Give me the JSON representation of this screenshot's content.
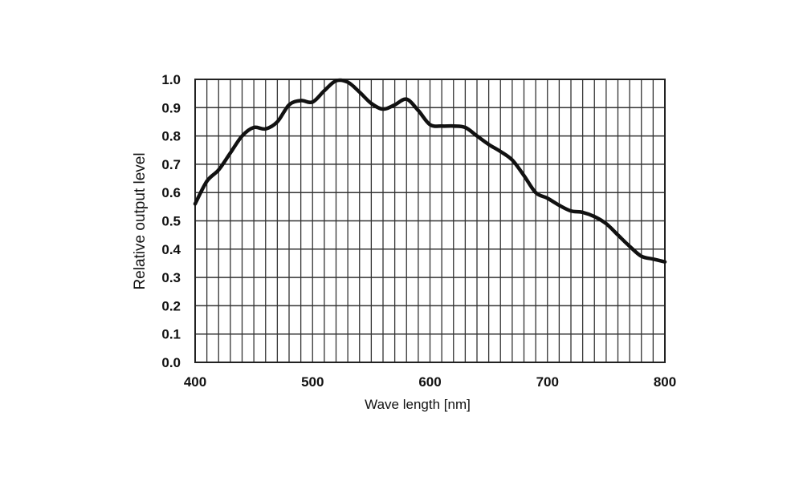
{
  "chart_data": {
    "type": "line",
    "title": "",
    "xlabel": "Wave length [nm]",
    "ylabel": "Relative output level",
    "xlim": [
      400,
      800
    ],
    "ylim": [
      0.0,
      1.0
    ],
    "x_ticks": [
      "400",
      "500",
      "600",
      "700",
      "800"
    ],
    "y_ticks": [
      "0.0",
      "0.1",
      "0.2",
      "0.3",
      "0.4",
      "0.5",
      "0.6",
      "0.7",
      "0.8",
      "0.9",
      "1.0"
    ],
    "grid": {
      "on": true,
      "x_minor_step": 10,
      "y_step": 0.1
    },
    "legend": null,
    "series": [
      {
        "name": "Relative output level",
        "color": "#111111",
        "x": [
          400,
          410,
          420,
          430,
          440,
          450,
          460,
          470,
          480,
          490,
          500,
          510,
          520,
          530,
          540,
          550,
          560,
          570,
          580,
          590,
          600,
          610,
          620,
          630,
          640,
          650,
          660,
          670,
          680,
          690,
          700,
          710,
          720,
          730,
          740,
          750,
          760,
          770,
          780,
          790,
          800
        ],
        "values": [
          0.56,
          0.64,
          0.68,
          0.74,
          0.8,
          0.83,
          0.825,
          0.85,
          0.91,
          0.925,
          0.92,
          0.96,
          0.995,
          0.99,
          0.955,
          0.915,
          0.895,
          0.91,
          0.93,
          0.89,
          0.84,
          0.835,
          0.835,
          0.83,
          0.8,
          0.77,
          0.745,
          0.715,
          0.66,
          0.6,
          0.58,
          0.555,
          0.535,
          0.53,
          0.515,
          0.49,
          0.45,
          0.41,
          0.375,
          0.365,
          0.355
        ]
      }
    ]
  }
}
